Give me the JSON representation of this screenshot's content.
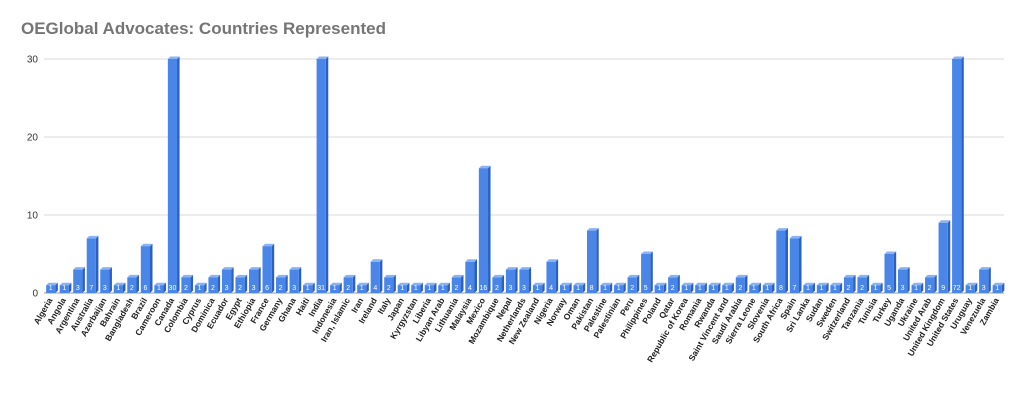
{
  "chart_data": {
    "type": "bar",
    "title": "OEGlobal Advocates: Countries Represented",
    "ylim": [
      0,
      30
    ],
    "yticks": [
      0,
      10,
      20,
      30
    ],
    "grid": true,
    "bar_color": "#4a86e8",
    "bar_side_color": "#2b5fc0",
    "bar_top_color": "#8ab3f3",
    "categories": [
      "Algeria",
      "Angola",
      "Argentina",
      "Australia",
      "Azerbaijan",
      "Bahrain",
      "Bangladesh",
      "Brazil",
      "Cameroon",
      "Canada",
      "Colombia",
      "Cyprus",
      "Dominica",
      "Ecuador",
      "Egypt",
      "Ethiopia",
      "France",
      "Germany",
      "Ghana",
      "Haiti",
      "India",
      "Indonesia",
      "Iran, Islamic",
      "Iran",
      "Ireland",
      "Italy",
      "Japan",
      "Kyrgyzstan",
      "Liberia",
      "Libyan Arab",
      "Lithuania",
      "Malaysia",
      "Mexico",
      "Mozambique",
      "Nepal",
      "Netherlands",
      "New Zealand",
      "Nigeria",
      "Norway",
      "Oman",
      "Pakistan",
      "Palestine",
      "Palestinian",
      "Peru",
      "Philippines",
      "Poland",
      "Qatar",
      "Republic of Korea",
      "Romania",
      "Rwanda",
      "Saint Vincent and",
      "Saudi Arabia",
      "Sierra Leone",
      "Slovenia",
      "South Africa",
      "Spain",
      "Sri Lanka",
      "Sudan",
      "Sweden",
      "Switzerland",
      "Tanzania",
      "Tunisia",
      "Turkey",
      "Uganda",
      "Ukraine",
      "United Arab",
      "United Kingdom",
      "United States",
      "Uruguay",
      "Venezuela",
      "Zambia"
    ],
    "values": [
      1,
      1,
      3,
      7,
      3,
      1,
      2,
      6,
      1,
      30,
      2,
      1,
      2,
      3,
      2,
      3,
      6,
      2,
      3,
      1,
      31,
      1,
      2,
      1,
      4,
      2,
      1,
      1,
      1,
      1,
      2,
      4,
      16,
      2,
      3,
      3,
      1,
      4,
      1,
      1,
      8,
      1,
      1,
      2,
      5,
      1,
      2,
      1,
      1,
      1,
      1,
      2,
      1,
      1,
      8,
      7,
      1,
      1,
      1,
      2,
      2,
      1,
      5,
      3,
      1,
      2,
      9,
      72,
      1,
      3,
      1
    ],
    "data_labels": [
      "1",
      "1",
      "3",
      "7",
      "3",
      "1",
      "2",
      "6",
      "1",
      "30",
      "2",
      "1",
      "2",
      "3",
      "2",
      "3",
      "6",
      "2",
      "3",
      "1",
      "31",
      "1",
      "2",
      "1",
      "4",
      "2",
      "1",
      "1",
      "1",
      "1",
      "2",
      "4",
      "16",
      "2",
      "3",
      "3",
      "1",
      "4",
      "1",
      "1",
      "8",
      "1",
      "1",
      "2",
      "5",
      "1",
      "2",
      "1",
      "1",
      "1",
      "1",
      "2",
      "1",
      "1",
      "8",
      "7",
      "1",
      "1",
      "1",
      "2",
      "2",
      "1",
      "5",
      "3",
      "1",
      "2",
      "9",
      "72",
      "1",
      "3",
      "1"
    ]
  }
}
